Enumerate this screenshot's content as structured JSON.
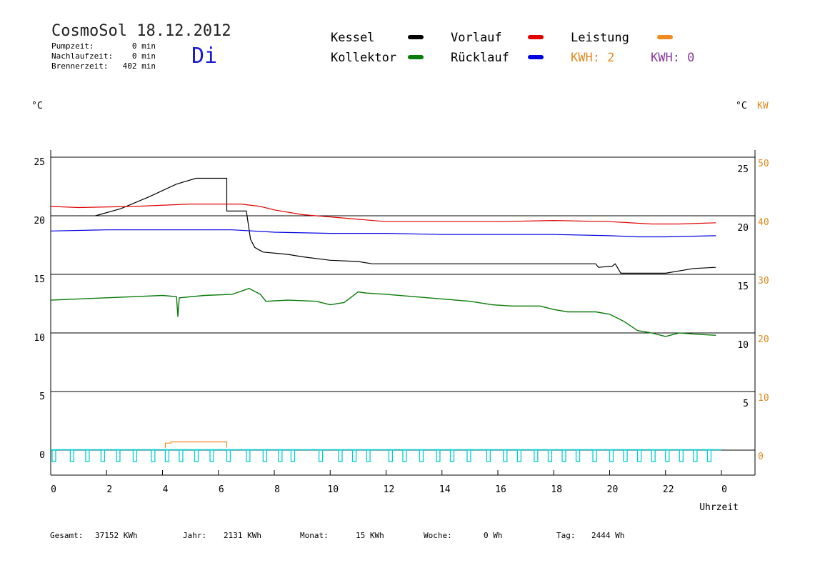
{
  "header": {
    "title": "CosmoSol 18.12.2012",
    "day": "Di",
    "info": [
      {
        "label": "Pumpzeit:",
        "value": "0 min"
      },
      {
        "label": "Nachlaufzeit:",
        "value": "0 min"
      },
      {
        "label": "Brennerzeit:",
        "value": "402 min"
      }
    ]
  },
  "colors": {
    "kessel": "#000000",
    "vorlauf": "#e00000",
    "kollektor": "#0a7a0a",
    "ruecklauf": "#0000e0",
    "leistung": "#f08a1e",
    "pumpe": "#00d0d0",
    "kwh2": "#8a3a9a"
  },
  "legend": [
    {
      "label": "Kessel",
      "color": "#000000"
    },
    {
      "label": "Vorlauf",
      "color": "#e00000"
    },
    {
      "label": "Leistung",
      "color": "#f08a1e"
    },
    {
      "label": "Kollektor",
      "color": "#0a7a0a"
    },
    {
      "label": "Rücklauf",
      "color": "#0000e0"
    },
    {
      "label": "KWH: 2",
      "color": "#e08a1e"
    },
    {
      "label": "KWH: 0",
      "color": "#8a3a9a"
    }
  ],
  "footer": [
    {
      "label": "Gesamt:",
      "value": "37152 KWh"
    },
    {
      "label": "Jahr:",
      "value": "2131 KWh"
    },
    {
      "label": "Monat:",
      "value": "15 KWh"
    },
    {
      "label": "Woche:",
      "value": "0 Wh"
    },
    {
      "label": "Tag:",
      "value": "2444 Wh"
    }
  ],
  "chart_data": {
    "type": "line",
    "xlabel": "Uhrzeit",
    "ylabel_left": "°C",
    "ylabel_right": "°C",
    "ylabel_right2": "KW",
    "x_ticks": [
      "0",
      "2",
      "4",
      "6",
      "8",
      "10",
      "12",
      "14",
      "16",
      "18",
      "20",
      "22",
      "0"
    ],
    "y_left_ticks": [
      "25",
      "20",
      "15",
      "10",
      "5",
      "0"
    ],
    "y_right_ticks": [
      "25",
      "20",
      "15",
      "10",
      "5"
    ],
    "y_right2_ticks": [
      "50",
      "40",
      "30",
      "20",
      "10",
      "0"
    ],
    "xlim": [
      0,
      24
    ],
    "ylim": [
      0,
      25
    ],
    "grid_lines_y": [
      25,
      20,
      15,
      10,
      5,
      0
    ],
    "series": [
      {
        "name": "Kessel",
        "key": "kessel",
        "points": [
          [
            1.6,
            20.0
          ],
          [
            2.5,
            20.6
          ],
          [
            3.5,
            21.6
          ],
          [
            4.5,
            22.7
          ],
          [
            5.2,
            23.2
          ],
          [
            6.3,
            23.2
          ],
          [
            6.3,
            20.4
          ],
          [
            7.0,
            20.4
          ],
          [
            7.15,
            18.0
          ],
          [
            7.3,
            17.3
          ],
          [
            7.6,
            16.9
          ],
          [
            8.5,
            16.7
          ],
          [
            9.0,
            16.5
          ],
          [
            10.0,
            16.2
          ],
          [
            11.0,
            16.1
          ],
          [
            11.5,
            15.9
          ],
          [
            13.0,
            15.9
          ],
          [
            16.0,
            15.9
          ],
          [
            19.5,
            15.9
          ],
          [
            19.6,
            15.6
          ],
          [
            20.1,
            15.7
          ],
          [
            20.2,
            15.9
          ],
          [
            20.4,
            15.1
          ],
          [
            21.8,
            15.1
          ],
          [
            22.0,
            15.1
          ],
          [
            23.0,
            15.5
          ],
          [
            23.8,
            15.6
          ]
        ]
      },
      {
        "name": "Vorlauf",
        "key": "vorlauf",
        "points": [
          [
            0.0,
            20.8
          ],
          [
            1.0,
            20.7
          ],
          [
            3.0,
            20.8
          ],
          [
            5.0,
            21.0
          ],
          [
            6.8,
            21.0
          ],
          [
            7.5,
            20.8
          ],
          [
            8.0,
            20.5
          ],
          [
            9.0,
            20.1
          ],
          [
            10.0,
            19.9
          ],
          [
            11.0,
            19.7
          ],
          [
            12.0,
            19.5
          ],
          [
            14.0,
            19.5
          ],
          [
            16.0,
            19.5
          ],
          [
            18.0,
            19.6
          ],
          [
            20.0,
            19.5
          ],
          [
            21.5,
            19.3
          ],
          [
            22.5,
            19.3
          ],
          [
            23.8,
            19.4
          ]
        ]
      },
      {
        "name": "Rücklauf",
        "key": "ruecklauf",
        "points": [
          [
            0.0,
            18.7
          ],
          [
            2.0,
            18.8
          ],
          [
            4.0,
            18.8
          ],
          [
            5.8,
            18.8
          ],
          [
            6.5,
            18.8
          ],
          [
            8.0,
            18.6
          ],
          [
            10.0,
            18.5
          ],
          [
            12.0,
            18.5
          ],
          [
            14.0,
            18.4
          ],
          [
            16.0,
            18.4
          ],
          [
            18.0,
            18.4
          ],
          [
            20.0,
            18.3
          ],
          [
            21.0,
            18.2
          ],
          [
            22.0,
            18.2
          ],
          [
            23.8,
            18.3
          ]
        ]
      },
      {
        "name": "Kollektor",
        "key": "kollektor",
        "points": [
          [
            0.0,
            12.8
          ],
          [
            1.0,
            12.9
          ],
          [
            2.0,
            13.0
          ],
          [
            3.0,
            13.1
          ],
          [
            4.0,
            13.2
          ],
          [
            4.5,
            13.1
          ],
          [
            4.55,
            11.4
          ],
          [
            4.6,
            13.0
          ],
          [
            5.5,
            13.2
          ],
          [
            6.5,
            13.3
          ],
          [
            7.1,
            13.8
          ],
          [
            7.5,
            13.3
          ],
          [
            7.7,
            12.7
          ],
          [
            8.5,
            12.8
          ],
          [
            9.5,
            12.7
          ],
          [
            10.0,
            12.4
          ],
          [
            10.5,
            12.6
          ],
          [
            11.0,
            13.5
          ],
          [
            11.3,
            13.4
          ],
          [
            12.0,
            13.3
          ],
          [
            13.0,
            13.1
          ],
          [
            14.0,
            12.9
          ],
          [
            15.0,
            12.7
          ],
          [
            15.8,
            12.4
          ],
          [
            16.5,
            12.3
          ],
          [
            17.5,
            12.3
          ],
          [
            18.0,
            12.0
          ],
          [
            18.5,
            11.8
          ],
          [
            19.5,
            11.8
          ],
          [
            20.0,
            11.6
          ],
          [
            20.5,
            11.0
          ],
          [
            21.0,
            10.2
          ],
          [
            21.5,
            10.0
          ],
          [
            22.0,
            9.7
          ],
          [
            22.5,
            10.0
          ],
          [
            23.0,
            9.9
          ],
          [
            23.8,
            9.8
          ]
        ]
      },
      {
        "name": "Leistung",
        "key": "leistung",
        "points": [
          [
            4.1,
            0.2
          ],
          [
            4.1,
            0.6
          ],
          [
            4.3,
            0.6
          ],
          [
            4.3,
            0.7
          ],
          [
            6.3,
            0.7
          ],
          [
            6.3,
            0.2
          ]
        ]
      }
    ],
    "pump_pulses": [
      0.05,
      0.7,
      1.25,
      1.8,
      2.35,
      2.95,
      3.6,
      4.1,
      4.6,
      5.15,
      5.7,
      6.3,
      7.0,
      7.6,
      8.15,
      8.6,
      9.6,
      10.3,
      10.8,
      11.3,
      12.1,
      12.6,
      13.2,
      13.8,
      14.3,
      14.9,
      15.6,
      16.2,
      16.7,
      17.3,
      17.8,
      18.3,
      18.8,
      19.4,
      20.0,
      20.5,
      21.0,
      21.5,
      22.0,
      22.5,
      23.0,
      23.5
    ]
  }
}
